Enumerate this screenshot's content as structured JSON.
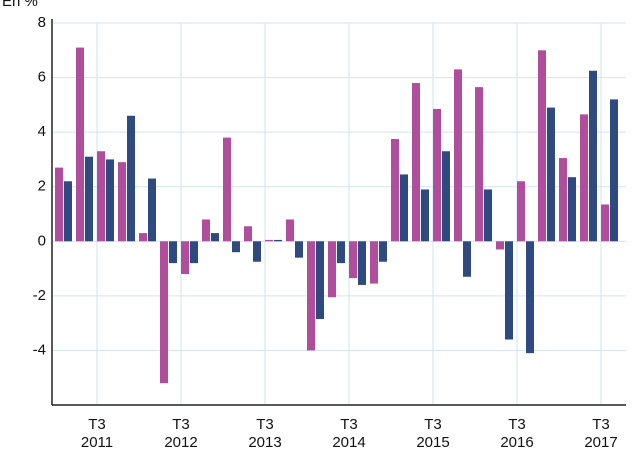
{
  "chart_data": {
    "type": "bar",
    "y_label": "En %",
    "categories": [
      null,
      null,
      "T3\n2011",
      null,
      null,
      null,
      "T3\n2012",
      null,
      null,
      null,
      "T3\n2013",
      null,
      null,
      null,
      "T3\n2014",
      null,
      null,
      null,
      "T3\n2015",
      null,
      null,
      null,
      "T3\n2016",
      null,
      null,
      null,
      "T3\n2017"
    ],
    "series": [
      {
        "color": "#b04d9d",
        "values": [
          2.7,
          7.1,
          3.3,
          2.9,
          0.3,
          -5.2,
          -1.2,
          0.8,
          3.8,
          0.55,
          0.05,
          0.8,
          -4.0,
          -2.05,
          -1.35,
          -1.55,
          3.75,
          5.8,
          4.85,
          6.3,
          5.65,
          -0.3,
          2.2,
          7.0,
          3.05,
          4.65,
          1.35
        ]
      },
      {
        "color": "#2e4a7e",
        "values": [
          2.2,
          3.1,
          3.0,
          4.6,
          2.3,
          -0.8,
          -0.8,
          0.3,
          -0.4,
          -0.75,
          0.05,
          -0.6,
          -2.85,
          -0.8,
          -1.6,
          -0.75,
          2.45,
          1.9,
          3.3,
          -1.3,
          1.9,
          -3.6,
          -4.1,
          4.9,
          2.35,
          6.25,
          5.2
        ]
      }
    ],
    "ylim": [
      -6,
      8
    ],
    "yticks": [
      -4,
      -2,
      0,
      2,
      4,
      6,
      8
    ],
    "grid": true
  }
}
